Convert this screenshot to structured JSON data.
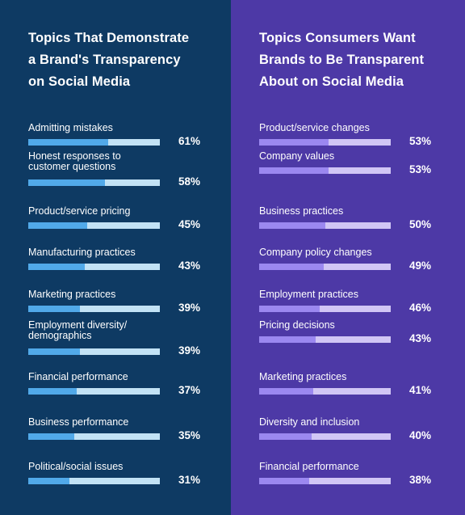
{
  "chart_data": [
    {
      "type": "bar",
      "title": "Topics That Demonstrate\na Brand's Transparency\non Social Media",
      "categories": [
        "Admitting mistakes",
        "Honest responses to\ncustomer questions",
        "Product/service pricing",
        "Manufacturing practices",
        "Marketing practices",
        "Employment diversity/\ndemographics",
        "Financial performance",
        "Business performance",
        "Political/social issues"
      ],
      "values": [
        61,
        58,
        45,
        43,
        39,
        39,
        37,
        35,
        31
      ],
      "value_labels": [
        "61%",
        "58%",
        "45%",
        "43%",
        "39%",
        "39%",
        "37%",
        "35%",
        "31%"
      ],
      "xlim": [
        0,
        100
      ],
      "colors": {
        "background": "#0e3a63",
        "fill": "#51a9e9",
        "track": "#c2e2f5"
      }
    },
    {
      "type": "bar",
      "title": "Topics Consumers Want\nBrands to Be Transparent\nAbout on Social Media",
      "categories": [
        "Product/service changes",
        "Company values",
        "Business practices",
        "Company policy changes",
        "Employment practices",
        "Pricing decisions",
        "Marketing practices",
        "Diversity and inclusion",
        "Financial performance"
      ],
      "values": [
        53,
        53,
        50,
        49,
        46,
        43,
        41,
        40,
        38
      ],
      "value_labels": [
        "53%",
        "53%",
        "50%",
        "49%",
        "46%",
        "43%",
        "41%",
        "40%",
        "38%"
      ],
      "xlim": [
        0,
        100
      ],
      "colors": {
        "background": "#4d39a6",
        "fill": "#9b88f0",
        "track": "#d1c6f5"
      }
    }
  ]
}
